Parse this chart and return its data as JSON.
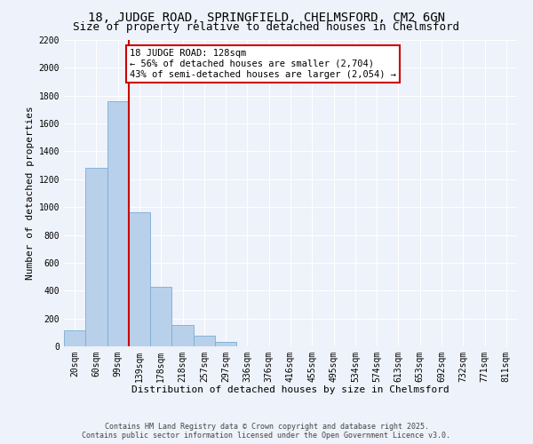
{
  "title": "18, JUDGE ROAD, SPRINGFIELD, CHELMSFORD, CM2 6GN",
  "subtitle": "Size of property relative to detached houses in Chelmsford",
  "xlabel": "Distribution of detached houses by size in Chelmsford",
  "ylabel": "Number of detached properties",
  "bar_labels": [
    "20sqm",
    "60sqm",
    "99sqm",
    "139sqm",
    "178sqm",
    "218sqm",
    "257sqm",
    "297sqm",
    "336sqm",
    "376sqm",
    "416sqm",
    "455sqm",
    "495sqm",
    "534sqm",
    "574sqm",
    "613sqm",
    "653sqm",
    "692sqm",
    "732sqm",
    "771sqm",
    "811sqm"
  ],
  "bar_values": [
    115,
    1280,
    1760,
    960,
    430,
    150,
    75,
    30,
    0,
    0,
    0,
    0,
    0,
    0,
    0,
    0,
    0,
    0,
    0,
    0,
    0
  ],
  "bar_color": "#b8d0ea",
  "bar_edge_color": "#7aadd4",
  "background_color": "#eef2fa",
  "grid_color": "#ffffff",
  "vline_color": "#cc0000",
  "vline_position": 2.5,
  "ylim": [
    0,
    2200
  ],
  "yticks": [
    0,
    200,
    400,
    600,
    800,
    1000,
    1200,
    1400,
    1600,
    1800,
    2000,
    2200
  ],
  "annotation_title": "18 JUDGE ROAD: 128sqm",
  "annotation_line1": "← 56% of detached houses are smaller (2,704)",
  "annotation_line2": "43% of semi-detached houses are larger (2,054) →",
  "annotation_box_color": "#ffffff",
  "annotation_box_edge_color": "#cc0000",
  "footer_line1": "Contains HM Land Registry data © Crown copyright and database right 2025.",
  "footer_line2": "Contains public sector information licensed under the Open Government Licence v3.0.",
  "title_fontsize": 10,
  "subtitle_fontsize": 9,
  "xlabel_fontsize": 8,
  "ylabel_fontsize": 8,
  "tick_fontsize": 7,
  "annotation_fontsize": 7.5,
  "footer_fontsize": 6
}
